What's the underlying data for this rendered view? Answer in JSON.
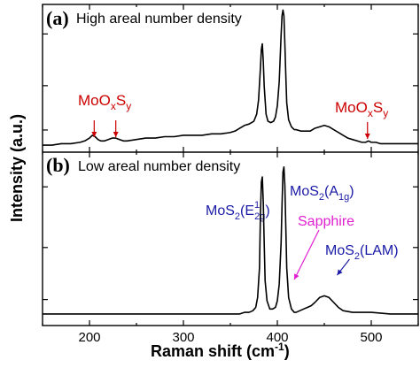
{
  "chart_data": {
    "type": "line",
    "xlabel": "Raman shift (cm",
    "xlabel_sup": "-1",
    "xlabel_close": ")",
    "ylabel": "Intensity (a.u.)",
    "xlim": [
      150,
      550
    ],
    "xticks": [
      200,
      300,
      400,
      500
    ],
    "y_tick_labels_shown": false,
    "grid": false,
    "panels": [
      {
        "id": "a",
        "letter": "(a)",
        "label": "High areal number density",
        "ylim": [
          -0.05,
          1.0
        ],
        "x": [
          150,
          160,
          170,
          180,
          190,
          195,
          200,
          203,
          206,
          209,
          212,
          216,
          220,
          224,
          228,
          232,
          236,
          240,
          250,
          260,
          270,
          280,
          290,
          300,
          310,
          320,
          330,
          340,
          350,
          355,
          360,
          365,
          370,
          375,
          378,
          380,
          382,
          383,
          384,
          385,
          386,
          388,
          390,
          393,
          396,
          398,
          400,
          402,
          404,
          405,
          406,
          407,
          408,
          409,
          410,
          412,
          415,
          418,
          420,
          425,
          430,
          435,
          440,
          445,
          450,
          455,
          460,
          465,
          470,
          475,
          480,
          485,
          490,
          494,
          497,
          500,
          505,
          510,
          520,
          530,
          540,
          550
        ],
        "y": [
          0.0,
          0.0,
          0.01,
          0.01,
          0.02,
          0.03,
          0.05,
          0.07,
          0.06,
          0.04,
          0.03,
          0.03,
          0.04,
          0.05,
          0.05,
          0.04,
          0.03,
          0.03,
          0.04,
          0.05,
          0.05,
          0.06,
          0.06,
          0.07,
          0.07,
          0.07,
          0.08,
          0.08,
          0.09,
          0.1,
          0.12,
          0.14,
          0.15,
          0.17,
          0.22,
          0.32,
          0.55,
          0.68,
          0.72,
          0.6,
          0.42,
          0.22,
          0.17,
          0.16,
          0.17,
          0.2,
          0.28,
          0.45,
          0.78,
          0.92,
          0.96,
          0.92,
          0.72,
          0.5,
          0.3,
          0.18,
          0.13,
          0.11,
          0.11,
          0.1,
          0.1,
          0.1,
          0.12,
          0.13,
          0.14,
          0.13,
          0.11,
          0.09,
          0.07,
          0.05,
          0.04,
          0.03,
          0.02,
          0.02,
          0.03,
          0.02,
          0.02,
          0.01,
          0.01,
          0.01,
          0.01,
          0.01
        ],
        "annotations": [
          {
            "base": "MoO",
            "sub1": "x",
            "mid": "S",
            "sub2": "y",
            "color": "#cc0000",
            "arrows_to_x": [
              205,
              228
            ]
          },
          {
            "base": "MoO",
            "sub1": "x",
            "mid": "S",
            "sub2": "y",
            "color": "#cc0000",
            "arrows_to_x": [
              496
            ]
          }
        ]
      },
      {
        "id": "b",
        "letter": "(b)",
        "label": "Low areal number density",
        "ylim": [
          -0.05,
          1.0
        ],
        "x": [
          150,
          170,
          190,
          210,
          230,
          250,
          270,
          290,
          310,
          330,
          350,
          360,
          365,
          370,
          374,
          377,
          379,
          381,
          382,
          383,
          384,
          385,
          386,
          387,
          389,
          392,
          395,
          398,
          400,
          402,
          404,
          405,
          406,
          407,
          408,
          409,
          410,
          412,
          415,
          418,
          420,
          424,
          428,
          432,
          436,
          440,
          445,
          450,
          455,
          460,
          465,
          470,
          480,
          490,
          500,
          520,
          540,
          550
        ],
        "y": [
          0.02,
          0.02,
          0.02,
          0.02,
          0.02,
          0.02,
          0.02,
          0.02,
          0.02,
          0.02,
          0.02,
          0.02,
          0.03,
          0.03,
          0.04,
          0.06,
          0.12,
          0.3,
          0.62,
          0.82,
          0.85,
          0.7,
          0.45,
          0.22,
          0.1,
          0.05,
          0.05,
          0.06,
          0.1,
          0.2,
          0.45,
          0.68,
          0.88,
          0.91,
          0.8,
          0.55,
          0.3,
          0.12,
          0.05,
          0.03,
          0.03,
          0.04,
          0.05,
          0.06,
          0.07,
          0.09,
          0.12,
          0.13,
          0.12,
          0.09,
          0.06,
          0.04,
          0.03,
          0.03,
          0.03,
          0.02,
          0.02,
          0.02
        ],
        "annotations": [
          {
            "text": "MoS",
            "sub": "2",
            "paren_open": "(E",
            "sup": "1",
            "sub_2": "2g",
            "paren_close": ")",
            "color": "#1a1aa6"
          },
          {
            "text": "MoS",
            "sub": "2",
            "paren_open": "(A",
            "sub_2": "1g",
            "paren_close": ")",
            "color": "#1a1aa6"
          },
          {
            "text": "Sapphire",
            "color": "#e020d0",
            "arrow_to_x": 418
          },
          {
            "text": "MoS",
            "sub": "2",
            "rest": "(LAM)",
            "color": "#1a1aa6",
            "arrow_to_x": 458
          }
        ]
      }
    ]
  }
}
